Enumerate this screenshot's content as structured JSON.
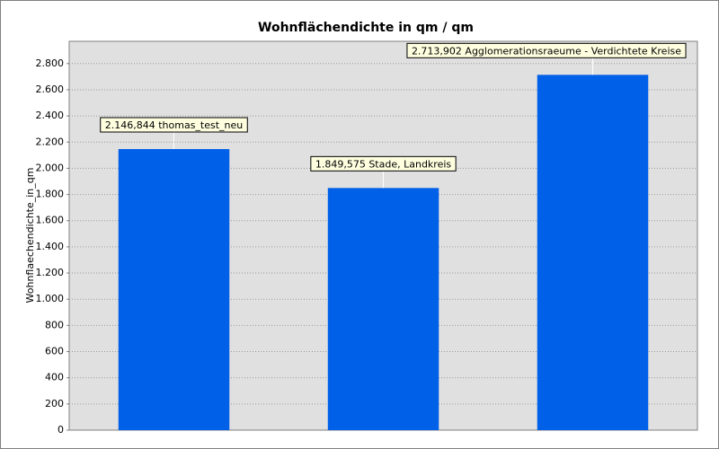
{
  "chart_data": {
    "type": "bar",
    "title": "Wohnflächendichte in qm / qm",
    "y_label": "Wohnflaechendichte_in_qm",
    "categories": [
      "thomas_test_neu",
      "Stade, Landkreis",
      "Agglomerationsraeume - Verdichtete Kreise"
    ],
    "values": [
      2146.844,
      1849.575,
      2713.902
    ],
    "value_labels": [
      "2.146,844",
      "1.849,575",
      "2.713,902"
    ],
    "color": "#0060e8",
    "ylim": [
      0,
      2970
    ],
    "yticks": [
      0,
      200,
      400,
      600,
      800,
      {
        "value": 1000,
        "label": "1.000"
      },
      {
        "value": 1200,
        "label": "1.200"
      },
      {
        "value": 1400,
        "label": "1.400"
      },
      {
        "value": 1600,
        "label": "1.600"
      },
      {
        "value": 1800,
        "label": "1.800"
      },
      {
        "value": 2000,
        "label": "2.000"
      },
      {
        "value": 2200,
        "label": "2.200"
      },
      {
        "value": 2400,
        "label": "2.400"
      },
      {
        "value": 2600,
        "label": "2.600"
      },
      {
        "value": 2800,
        "label": "2.800"
      }
    ],
    "grid": true
  }
}
